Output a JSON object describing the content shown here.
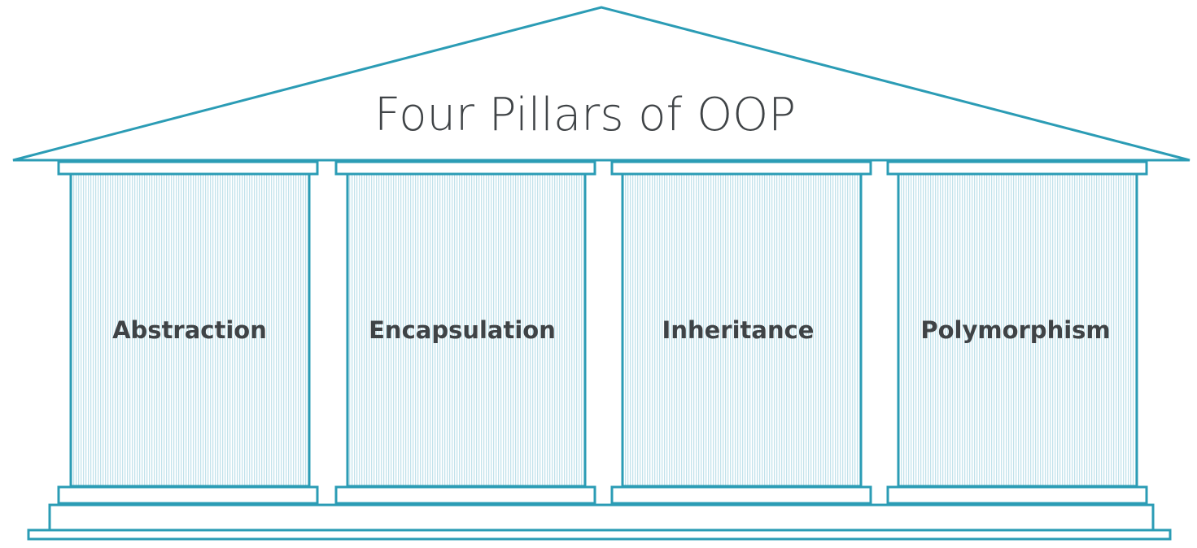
{
  "diagram": {
    "title": "Four Pillars of OOP",
    "pillars": [
      {
        "label": "Abstraction"
      },
      {
        "label": "Encapsulation"
      },
      {
        "label": "Inheritance"
      },
      {
        "label": "Polymorphism"
      }
    ]
  },
  "colors": {
    "outline": "#2b9cb5",
    "text": "#3f4346",
    "hatch": "#a8d6e2",
    "background": "#ffffff"
  }
}
